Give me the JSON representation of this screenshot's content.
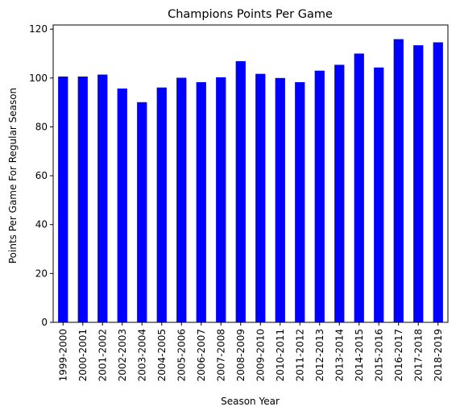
{
  "chart_data": {
    "type": "bar",
    "title": "Champions Points Per Game",
    "xlabel": "Season Year",
    "ylabel": "Points Per Game For Regular Season",
    "categories": [
      "1999-2000",
      "2000-2001",
      "2001-2002",
      "2002-2003",
      "2003-2004",
      "2004-2005",
      "2005-2006",
      "2006-2007",
      "2007-2008",
      "2008-2009",
      "2009-2010",
      "2010-2011",
      "2011-2012",
      "2012-2013",
      "2013-2014",
      "2014-2015",
      "2015-2016",
      "2016-2017",
      "2017-2018",
      "2018-2019"
    ],
    "values": [
      100.6,
      100.6,
      101.4,
      95.7,
      90.1,
      96.1,
      100.1,
      98.3,
      100.3,
      106.9,
      101.7,
      100.0,
      98.3,
      103.0,
      105.4,
      110.0,
      104.3,
      115.9,
      113.4,
      114.6
    ],
    "ylim": [
      0,
      121.7
    ],
    "yticks": [
      0,
      20,
      40,
      60,
      80,
      100,
      120
    ],
    "bar_color": "#0000ff",
    "grid": false,
    "legend": "none"
  }
}
